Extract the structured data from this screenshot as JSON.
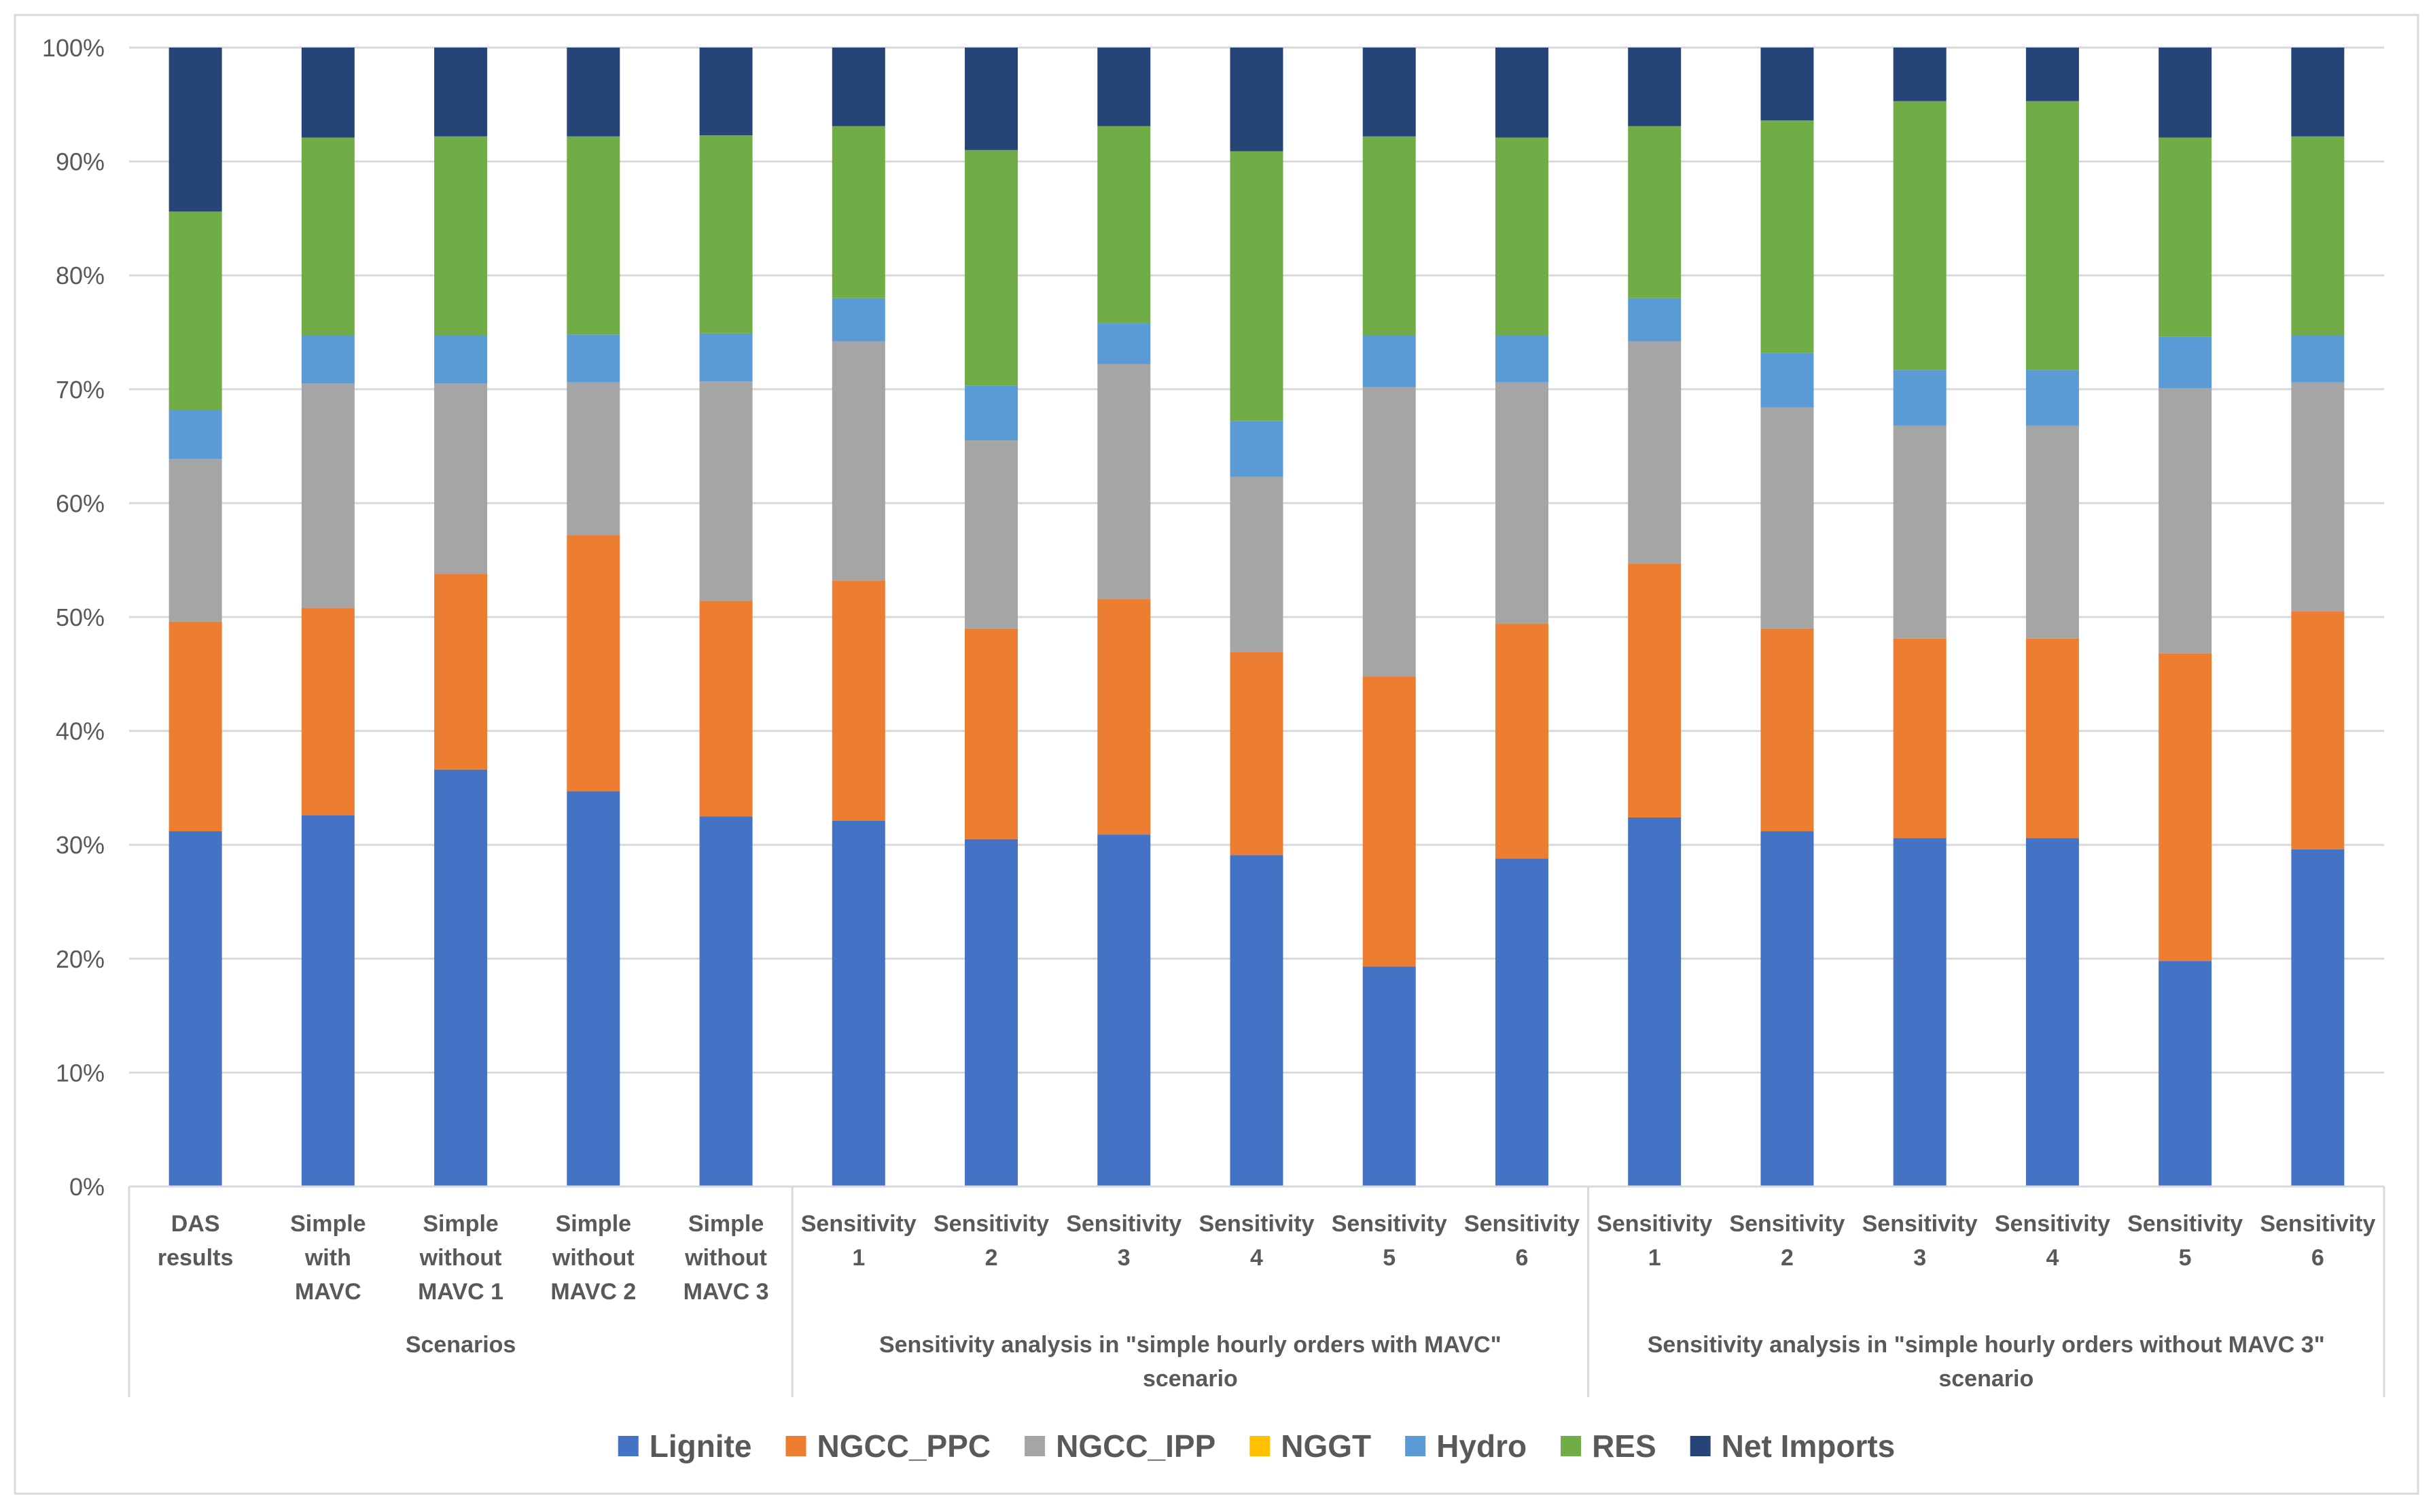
{
  "chart_data": {
    "type": "bar",
    "stacked": true,
    "percent_stacked": true,
    "title": "",
    "xlabel": "",
    "ylabel": "",
    "ylim": [
      0,
      100
    ],
    "y_ticks": [
      "0%",
      "10%",
      "20%",
      "30%",
      "40%",
      "50%",
      "60%",
      "70%",
      "80%",
      "90%",
      "100%"
    ],
    "grid": true,
    "legend_position": "bottom",
    "categories": [
      [
        "DAS",
        "results"
      ],
      [
        "Simple",
        "with",
        "MAVC"
      ],
      [
        "Simple",
        "without",
        "MAVC 1"
      ],
      [
        "Simple",
        "without",
        "MAVC 2"
      ],
      [
        "Simple",
        "without",
        "MAVC 3"
      ],
      [
        "Sensitivity",
        "1"
      ],
      [
        "Sensitivity",
        "2"
      ],
      [
        "Sensitivity",
        "3"
      ],
      [
        "Sensitivity",
        "4"
      ],
      [
        "Sensitivity",
        "5"
      ],
      [
        "Sensitivity",
        "6"
      ],
      [
        "Sensitivity",
        "1"
      ],
      [
        "Sensitivity",
        "2"
      ],
      [
        "Sensitivity",
        "3"
      ],
      [
        "Sensitivity",
        "4"
      ],
      [
        "Sensitivity",
        "5"
      ],
      [
        "Sensitivity",
        "6"
      ]
    ],
    "groups": [
      {
        "label": [
          "Scenarios"
        ],
        "start": 0,
        "end": 4
      },
      {
        "label": [
          "Sensitivity analysis in \"simple hourly orders with MAVC\"",
          "scenario"
        ],
        "start": 5,
        "end": 10
      },
      {
        "label": [
          "Sensitivity analysis in \"simple hourly orders without MAVC 3\"",
          "scenario"
        ],
        "start": 11,
        "end": 16
      }
    ],
    "series": [
      {
        "name": "Lignite",
        "color": "#4472C4",
        "values": [
          31.2,
          32.6,
          36.6,
          34.7,
          32.5,
          32.1,
          30.5,
          30.9,
          29.1,
          19.3,
          28.8,
          32.4,
          31.2,
          30.6,
          30.6,
          19.8,
          29.6
        ]
      },
      {
        "name": "NGCC_PPC",
        "color": "#ED7D31",
        "values": [
          18.4,
          18.2,
          17.2,
          22.5,
          18.9,
          21.1,
          18.5,
          20.7,
          17.8,
          25.5,
          20.6,
          22.3,
          17.8,
          17.5,
          17.5,
          27.0,
          20.9
        ]
      },
      {
        "name": "NGCC_IPP",
        "color": "#A5A5A5",
        "values": [
          14.3,
          19.7,
          16.7,
          13.4,
          19.3,
          21.0,
          16.5,
          20.6,
          15.4,
          25.4,
          21.2,
          19.5,
          19.4,
          18.7,
          18.7,
          23.3,
          20.1
        ]
      },
      {
        "name": "NGGT",
        "color": "#FFC000",
        "values": [
          0,
          0,
          0,
          0,
          0,
          0,
          0,
          0,
          0,
          0,
          0,
          0,
          0,
          0,
          0,
          0,
          0
        ]
      },
      {
        "name": "Hydro",
        "color": "#5B9BD5",
        "values": [
          4.3,
          4.2,
          4.2,
          4.2,
          4.2,
          3.8,
          4.8,
          3.6,
          4.9,
          4.5,
          4.1,
          3.8,
          4.8,
          4.9,
          4.9,
          4.5,
          4.1
        ]
      },
      {
        "name": "RES",
        "color": "#70AD47",
        "values": [
          17.4,
          17.4,
          17.5,
          17.4,
          17.4,
          15.1,
          20.7,
          17.3,
          23.7,
          17.5,
          17.4,
          15.1,
          20.4,
          23.6,
          23.6,
          17.5,
          17.5
        ]
      },
      {
        "name": "Net Imports",
        "color": "#264478",
        "values": [
          14.4,
          7.9,
          7.8,
          7.8,
          7.7,
          6.9,
          9.0,
          6.9,
          9.1,
          7.8,
          7.9,
          6.9,
          6.4,
          4.7,
          4.7,
          7.9,
          7.8
        ]
      }
    ]
  }
}
